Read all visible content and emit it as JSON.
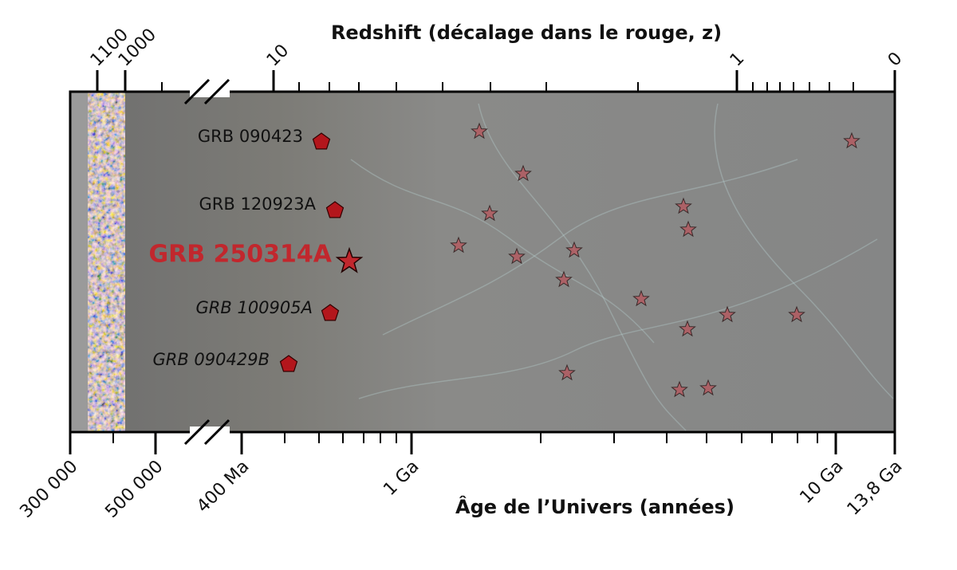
{
  "top_axis": {
    "title": "Redshift (décalage dans le rouge, z)",
    "ticks": [
      "1100",
      "1000",
      "10",
      "1",
      "0"
    ]
  },
  "bottom_axis": {
    "title": "Âge de l’Univers (années)",
    "ticks": [
      "300 000",
      "500 000",
      "400 Ma",
      "1 Ga",
      "10 Ga",
      "13,8 Ga"
    ]
  },
  "bursts": [
    "GRB 090423",
    "GRB 120923A",
    "GRB 250314A",
    "GRB 100905A",
    "GRB 090429B"
  ]
}
